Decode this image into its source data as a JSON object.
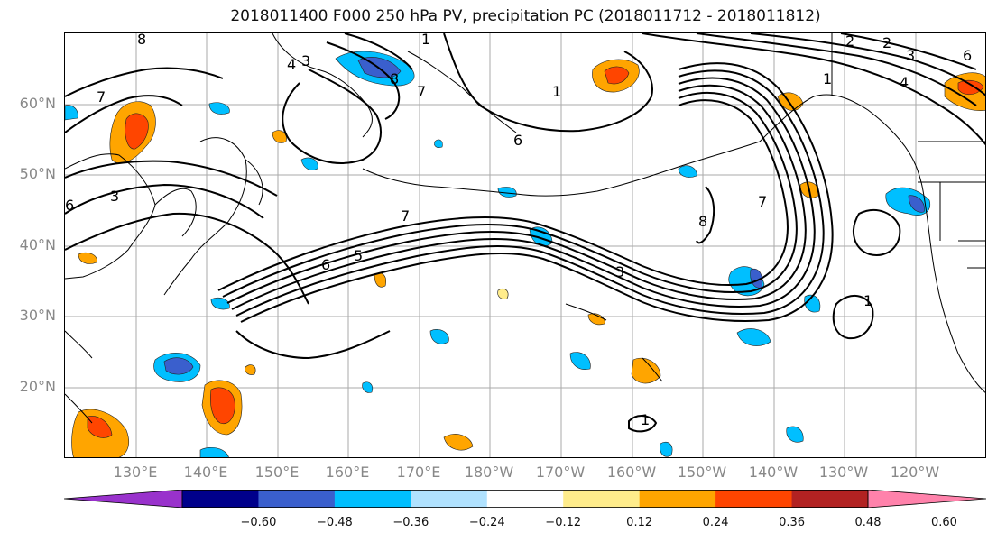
{
  "title": "2018011400 F000 250 hPa PV, precipitation PC (2018011712 - 2018011812)",
  "lat_labels": [
    "60°N",
    "50°N",
    "40°N",
    "30°N",
    "20°N"
  ],
  "lon_labels": [
    "130°E",
    "140°E",
    "150°E",
    "160°E",
    "170°E",
    "180°W",
    "170°W",
    "160°W",
    "150°W",
    "140°W",
    "130°W",
    "120°W"
  ],
  "colorbar": {
    "ticks": [
      "−0.60",
      "−0.48",
      "−0.36",
      "−0.24",
      "−0.12",
      "0.12",
      "0.24",
      "0.36",
      "0.48",
      "0.60"
    ],
    "colors": [
      "#9932cc",
      "#00008b",
      "#3a5fcd",
      "#00bfff",
      "#b0e2ff",
      "#ffffff",
      "#ffec8b",
      "#ffa500",
      "#ff4500",
      "#b22222",
      "#ff82ab"
    ]
  },
  "contour_labels": [
    "8",
    "7",
    "4",
    "3",
    "2",
    "1",
    "6",
    "7",
    "6",
    "3",
    "8",
    "1",
    "7",
    "5",
    "6",
    "1",
    "2",
    "3",
    "4",
    "6",
    "7",
    "8",
    "1",
    "1",
    "3"
  ]
}
